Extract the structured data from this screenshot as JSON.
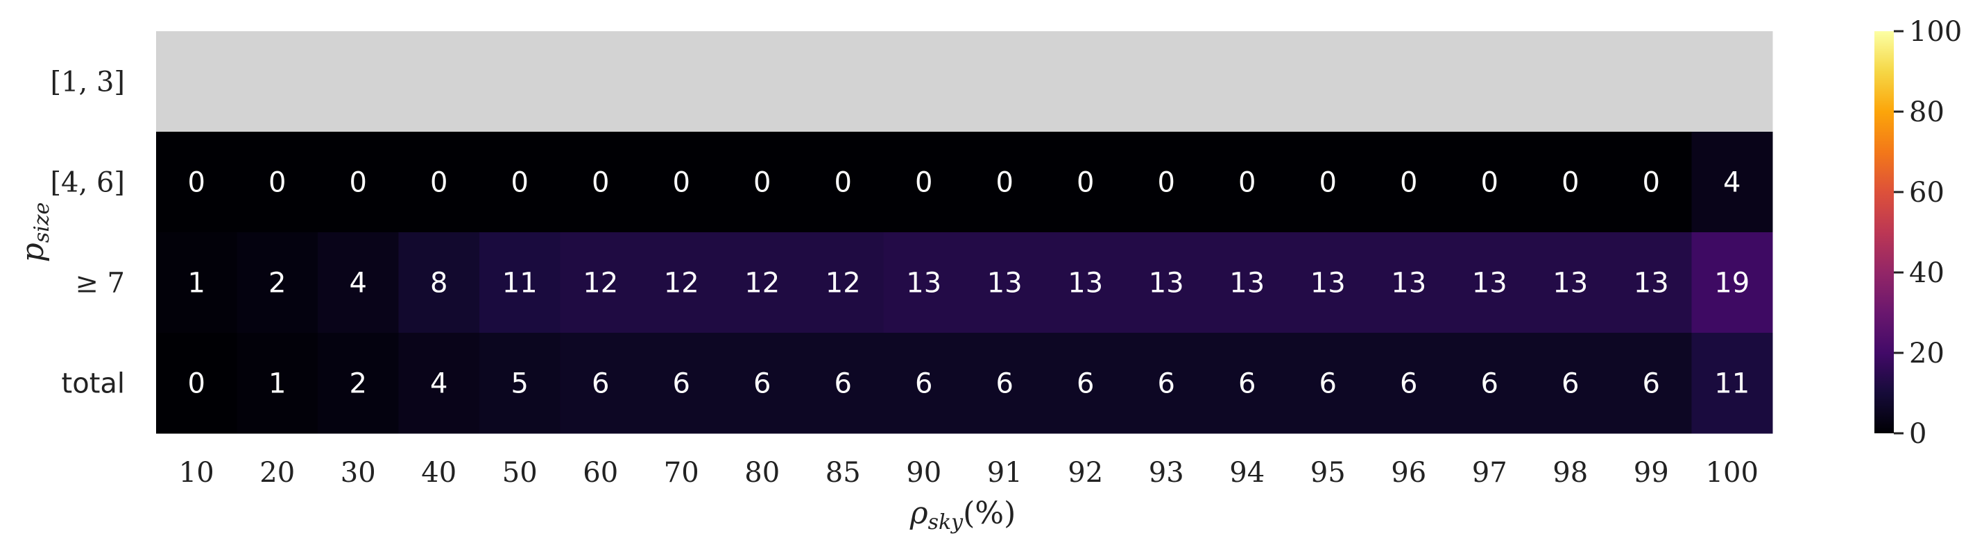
{
  "chart_data": {
    "type": "heatmap",
    "colormap": "inferno",
    "missing_color": "#d3d3d3",
    "x_categories": [
      "10",
      "20",
      "30",
      "40",
      "50",
      "60",
      "70",
      "80",
      "85",
      "90",
      "91",
      "92",
      "93",
      "94",
      "95",
      "96",
      "97",
      "98",
      "99",
      "100"
    ],
    "y_categories": [
      "[1, 3]",
      "[4, 6]",
      "≥ 7",
      "total"
    ],
    "values": [
      [
        null,
        null,
        null,
        null,
        null,
        null,
        null,
        null,
        null,
        null,
        null,
        null,
        null,
        null,
        null,
        null,
        null,
        null,
        null,
        null
      ],
      [
        0,
        0,
        0,
        0,
        0,
        0,
        0,
        0,
        0,
        0,
        0,
        0,
        0,
        0,
        0,
        0,
        0,
        0,
        0,
        4
      ],
      [
        1,
        2,
        4,
        8,
        11,
        12,
        12,
        12,
        12,
        13,
        13,
        13,
        13,
        13,
        13,
        13,
        13,
        13,
        13,
        19
      ],
      [
        0,
        1,
        2,
        4,
        5,
        6,
        6,
        6,
        6,
        6,
        6,
        6,
        6,
        6,
        6,
        6,
        6,
        6,
        6,
        11
      ]
    ],
    "xlabel": "ρsky(%)",
    "ylabel": "psize",
    "colorbar": {
      "range": [
        0,
        100
      ],
      "ticks": [
        "0",
        "20",
        "40",
        "60",
        "80",
        "100"
      ]
    }
  }
}
